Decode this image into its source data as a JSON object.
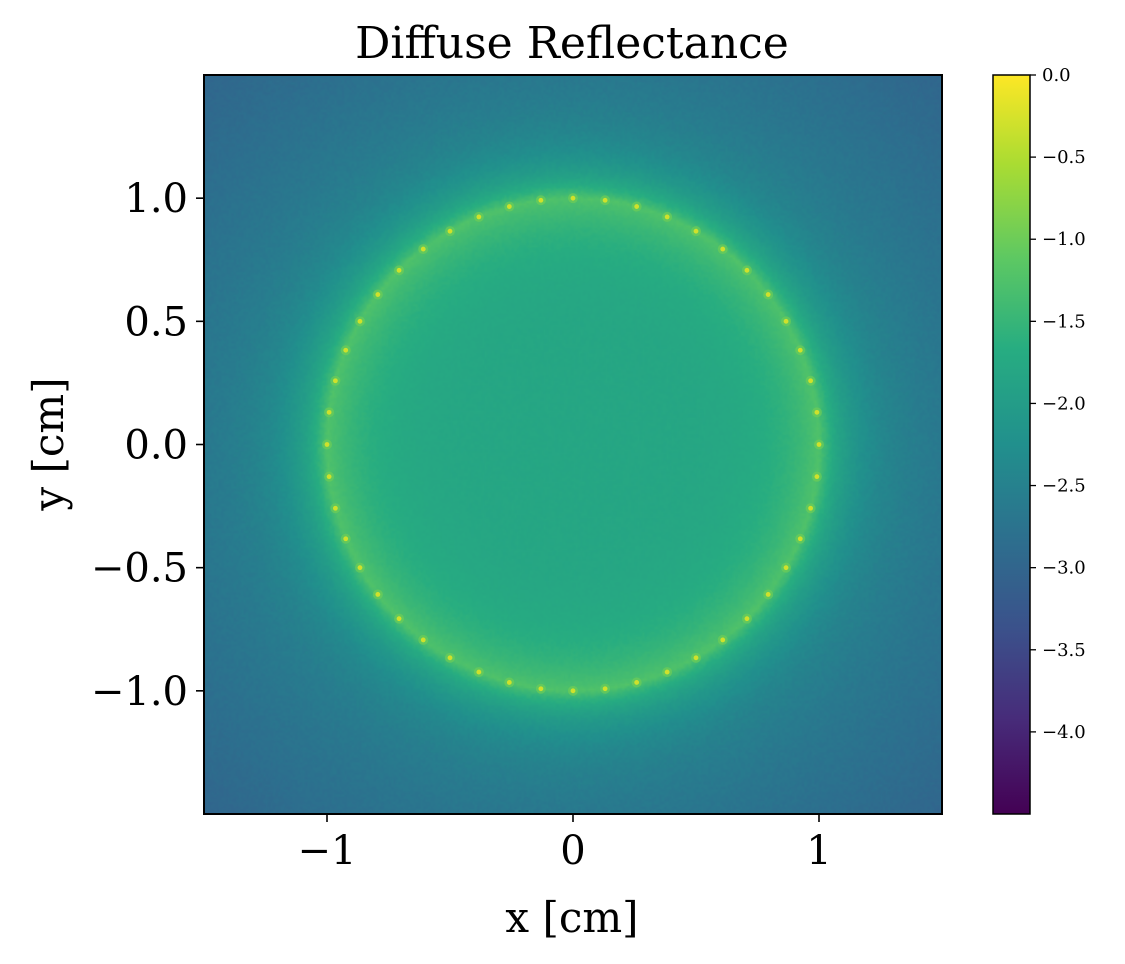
{
  "chart_data": {
    "type": "heatmap",
    "title": "Diffuse Reflectance",
    "xlabel": "x [cm]",
    "ylabel": "y [cm]",
    "xlim": [
      -1.5,
      1.5
    ],
    "ylim": [
      -1.5,
      1.5
    ],
    "x_ticks": [
      {
        "value": -1,
        "label": "−1"
      },
      {
        "value": 0,
        "label": "0"
      },
      {
        "value": 1,
        "label": "1"
      }
    ],
    "y_ticks": [
      {
        "value": 1.0,
        "label": "1.0"
      },
      {
        "value": 0.5,
        "label": "0.5"
      },
      {
        "value": 0.0,
        "label": "0.0"
      },
      {
        "value": -0.5,
        "label": "−0.5"
      },
      {
        "value": -1.0,
        "label": "−1.0"
      }
    ],
    "colorbar": {
      "colormap": "viridis",
      "range": [
        -4.5,
        0.0
      ],
      "ticks": [
        {
          "value": 0.0,
          "label": "0.0"
        },
        {
          "value": -0.5,
          "label": "−0.5"
        },
        {
          "value": -1.0,
          "label": "−1.0"
        },
        {
          "value": -1.5,
          "label": "−1.5"
        },
        {
          "value": -2.0,
          "label": "−2.0"
        },
        {
          "value": -2.5,
          "label": "−2.5"
        },
        {
          "value": -3.0,
          "label": "−3.0"
        },
        {
          "value": -3.5,
          "label": "−3.5"
        },
        {
          "value": -4.0,
          "label": "−4.0"
        }
      ]
    },
    "field": {
      "ring_radius_cm": 1.0,
      "ring_source_count": 48,
      "source_value": -0.3,
      "ring_glow_value": -1.25,
      "center_value": -1.8,
      "edge_value": -2.5,
      "corner_value": -3.0
    }
  }
}
